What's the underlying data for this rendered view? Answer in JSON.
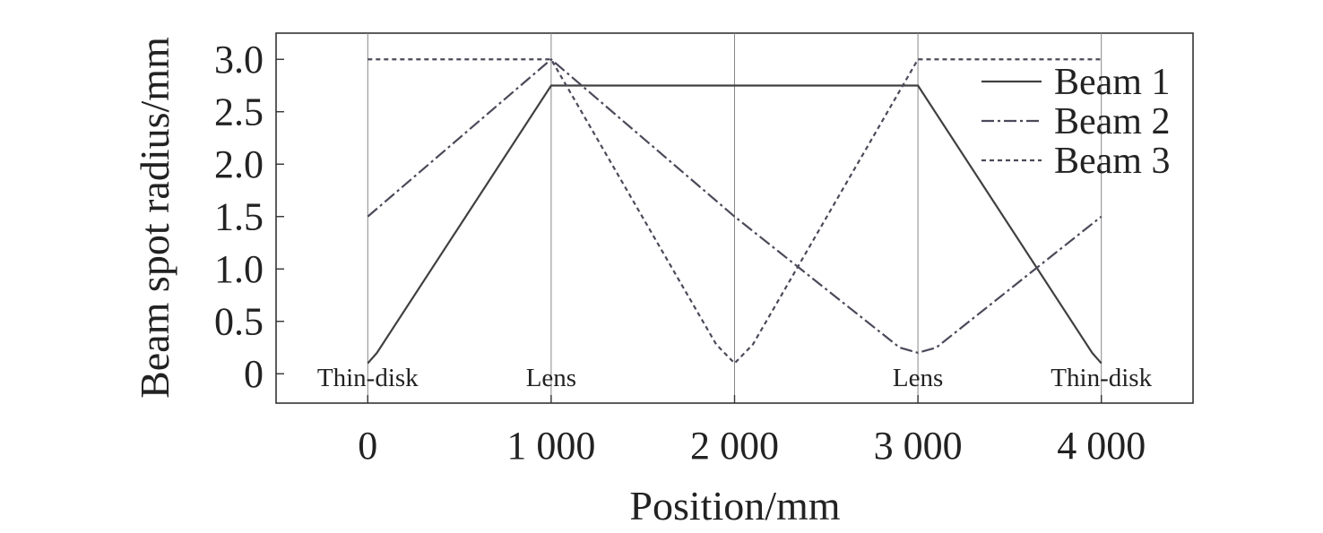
{
  "chart_data": {
    "type": "line",
    "xlabel": "Position/mm",
    "ylabel": "Beam spot radius/mm",
    "xlim": [
      -500,
      4500
    ],
    "ylim": [
      -0.28,
      3.25
    ],
    "xticks": [
      {
        "value": 0,
        "label": "0"
      },
      {
        "value": 1000,
        "label": "1 000"
      },
      {
        "value": 2000,
        "label": "2 000"
      },
      {
        "value": 3000,
        "label": "3 000"
      },
      {
        "value": 4000,
        "label": "4 000"
      }
    ],
    "yticks": [
      {
        "value": 0,
        "label": "0"
      },
      {
        "value": 0.5,
        "label": "0.5"
      },
      {
        "value": 1.0,
        "label": "1.0"
      },
      {
        "value": 1.5,
        "label": "1.5"
      },
      {
        "value": 2.0,
        "label": "2.0"
      },
      {
        "value": 2.5,
        "label": "2.5"
      },
      {
        "value": 3.0,
        "label": "3.0"
      }
    ],
    "vertical_lines": [
      0,
      1000,
      2000,
      3000,
      4000
    ],
    "annotations": [
      {
        "x": 0,
        "text": "Thin-disk"
      },
      {
        "x": 1000,
        "text": "Lens"
      },
      {
        "x": 3000,
        "text": "Lens"
      },
      {
        "x": 4000,
        "text": "Thin-disk"
      }
    ],
    "legend_position": "top-right",
    "grid": false,
    "series": [
      {
        "name": "Beam 1",
        "color": "#404040",
        "style": "solid",
        "x": [
          0,
          50,
          1000,
          3000,
          3950,
          4000
        ],
        "y": [
          0.1,
          0.2,
          2.75,
          2.75,
          0.2,
          0.1
        ]
      },
      {
        "name": "Beam 2",
        "color": "#4a4a5a",
        "accent_color": "#e0203a",
        "style": "dashdot",
        "x": [
          0,
          1000,
          2000,
          2900,
          3000,
          3100,
          4000
        ],
        "y": [
          1.5,
          3.0,
          1.5,
          0.25,
          0.2,
          0.25,
          1.5
        ]
      },
      {
        "name": "Beam 3",
        "color": "#4a4a5a",
        "style": "dotted",
        "x": [
          0,
          1000,
          1900,
          2000,
          2100,
          3000,
          4000
        ],
        "y": [
          3.0,
          3.0,
          0.28,
          0.1,
          0.28,
          3.0,
          3.0
        ]
      }
    ]
  }
}
